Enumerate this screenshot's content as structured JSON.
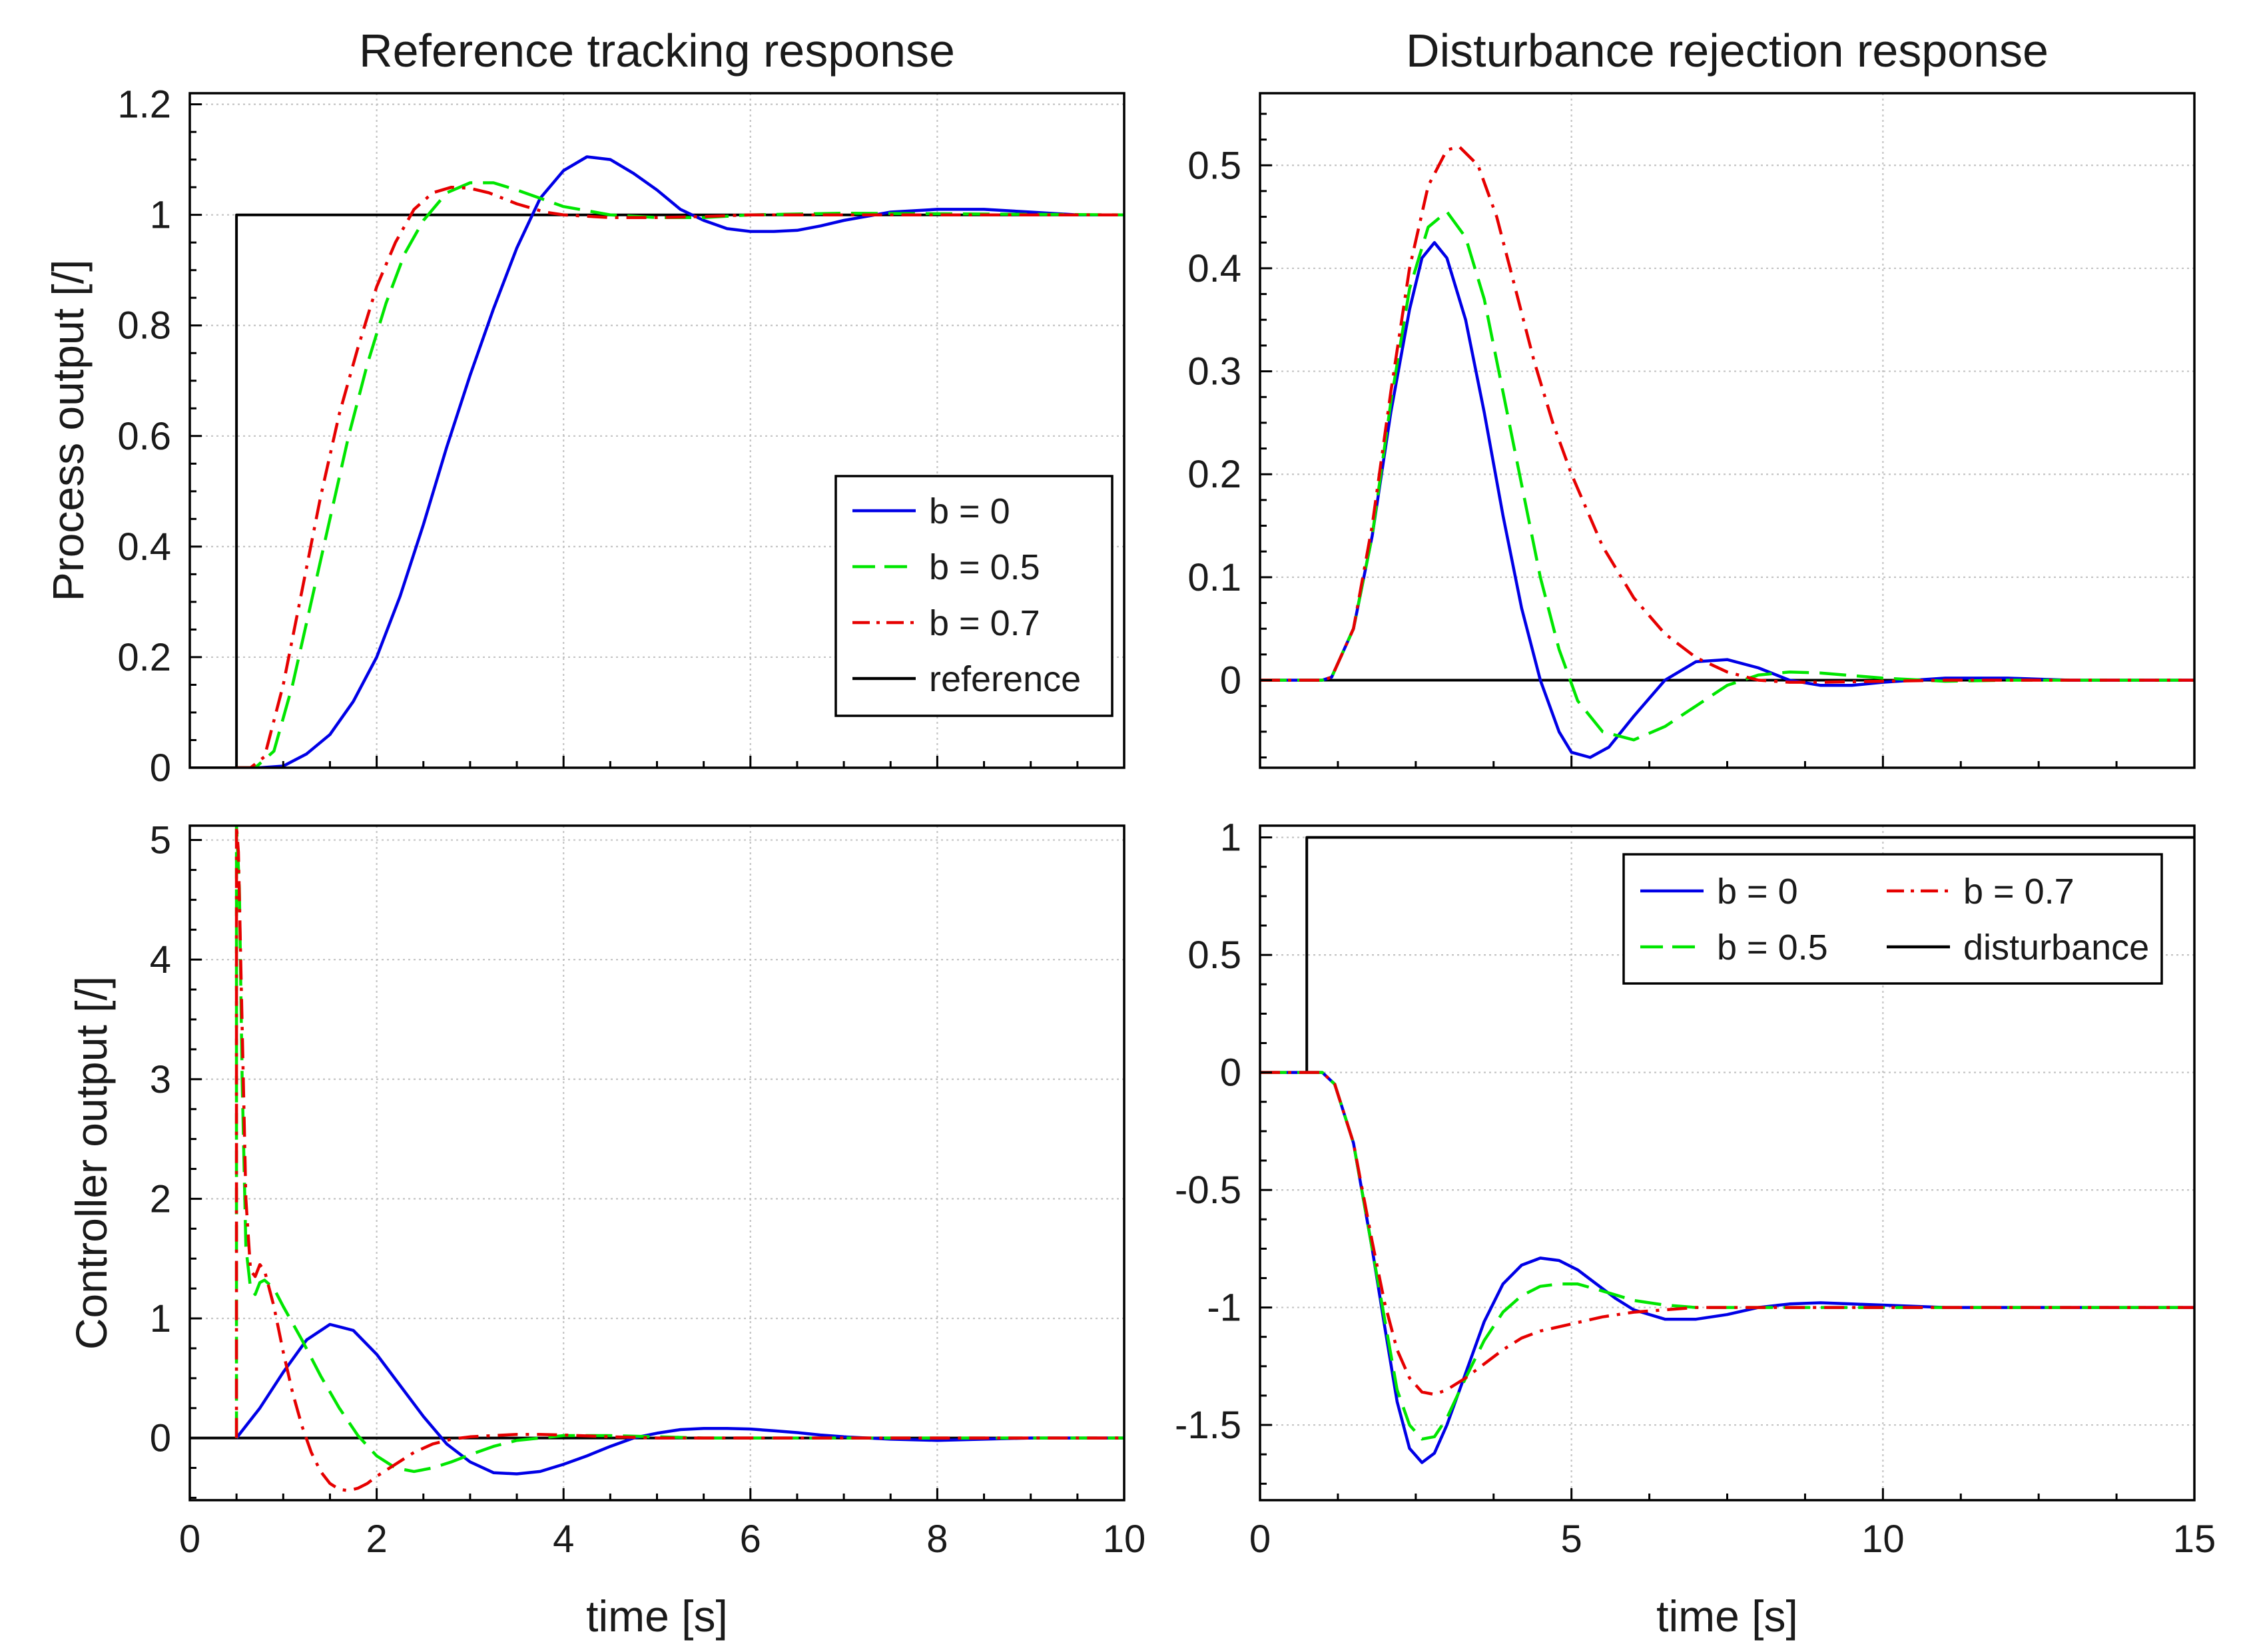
{
  "colors": {
    "b0": "#0000e6",
    "b05": "#00e600",
    "b07": "#e60000",
    "reference": "#000000"
  },
  "chart_data": [
    {
      "id": "tl",
      "type": "line",
      "title": "Reference tracking response",
      "xlabel": "",
      "ylabel": "Process output [/]",
      "xlim": [
        0,
        10
      ],
      "ylim": [
        0,
        1.22
      ],
      "xticks": [
        0,
        2,
        4,
        6,
        8,
        10
      ],
      "yticks": [
        0,
        0.2,
        0.4,
        0.6,
        0.8,
        1,
        1.2
      ],
      "yticklabels": [
        "0",
        "0.2",
        "0.4",
        "0.6",
        "0.8",
        "1",
        "1.2"
      ],
      "show_xticklabels": false,
      "grid": true,
      "legend": {
        "position": "right",
        "columns": 1
      },
      "series": [
        {
          "name": "b = 0",
          "style": "solid",
          "color": "#0000e6",
          "x": [
            0.5,
            0.75,
            1.0,
            1.25,
            1.5,
            1.75,
            2.0,
            2.25,
            2.5,
            2.75,
            3.0,
            3.25,
            3.5,
            3.75,
            4.0,
            4.25,
            4.5,
            4.75,
            5.0,
            5.25,
            5.5,
            5.75,
            6.0,
            6.25,
            6.5,
            6.75,
            7.0,
            7.5,
            8.0,
            8.5,
            9.0,
            9.5,
            10.0
          ],
          "y": [
            0,
            0,
            0.003,
            0.025,
            0.06,
            0.12,
            0.2,
            0.31,
            0.44,
            0.58,
            0.71,
            0.83,
            0.94,
            1.03,
            1.08,
            1.105,
            1.1,
            1.075,
            1.045,
            1.01,
            0.99,
            0.975,
            0.97,
            0.97,
            0.972,
            0.98,
            0.99,
            1.005,
            1.01,
            1.01,
            1.005,
            1.0,
            1.0
          ]
        },
        {
          "name": "b = 0.5",
          "style": "dashed",
          "color": "#00e600",
          "x": [
            0.5,
            0.7,
            0.9,
            1.1,
            1.3,
            1.5,
            1.7,
            1.9,
            2.1,
            2.3,
            2.5,
            2.75,
            3.0,
            3.25,
            3.5,
            3.75,
            4.0,
            4.5,
            5.0,
            5.5,
            6.0,
            7.0,
            8.0,
            10.0
          ],
          "y": [
            0,
            0,
            0.03,
            0.15,
            0.3,
            0.45,
            0.6,
            0.73,
            0.84,
            0.93,
            0.99,
            1.04,
            1.058,
            1.058,
            1.045,
            1.03,
            1.015,
            1.0,
            0.995,
            0.995,
            1.0,
            1.003,
            1.002,
            1.0
          ]
        },
        {
          "name": "b = 0.7",
          "style": "dashdot",
          "color": "#e60000",
          "x": [
            0.5,
            0.65,
            0.8,
            1.0,
            1.2,
            1.4,
            1.6,
            1.8,
            2.0,
            2.2,
            2.4,
            2.6,
            2.8,
            3.0,
            3.2,
            3.5,
            3.8,
            4.0,
            4.5,
            5.0,
            5.5,
            6.0,
            7.0,
            10.0
          ],
          "y": [
            0,
            0,
            0.02,
            0.15,
            0.32,
            0.49,
            0.64,
            0.76,
            0.87,
            0.95,
            1.01,
            1.04,
            1.05,
            1.048,
            1.04,
            1.02,
            1.005,
            1.0,
            0.995,
            0.995,
            0.997,
            1.0,
            1.0,
            1.0
          ]
        },
        {
          "name": "reference",
          "style": "solid",
          "color": "#000000",
          "x": [
            0,
            0.5,
            0.5,
            10
          ],
          "y": [
            0,
            0,
            1,
            1
          ]
        }
      ]
    },
    {
      "id": "tr",
      "type": "line",
      "title": "Disturbance rejection response",
      "xlabel": "",
      "ylabel": "",
      "xlim": [
        0,
        15
      ],
      "ylim": [
        -0.085,
        0.57
      ],
      "xticks": [
        0,
        5,
        10,
        15
      ],
      "yticks": [
        0,
        0.1,
        0.2,
        0.3,
        0.4,
        0.5
      ],
      "yticklabels": [
        "0",
        "0.1",
        "0.2",
        "0.3",
        "0.4",
        "0.5"
      ],
      "show_xticklabels": false,
      "grid": true,
      "series": [
        {
          "name": "b = 0",
          "style": "solid",
          "color": "#0000e6",
          "x": [
            0,
            1.0,
            1.15,
            1.5,
            1.8,
            2.1,
            2.4,
            2.6,
            2.8,
            3.0,
            3.3,
            3.6,
            3.9,
            4.2,
            4.5,
            4.8,
            5.0,
            5.3,
            5.6,
            6.0,
            6.5,
            7.0,
            7.5,
            8.0,
            8.5,
            9.0,
            9.5,
            10.0,
            11.0,
            12.0,
            13.0,
            14.0,
            15.0
          ],
          "y": [
            0,
            0,
            0.003,
            0.05,
            0.14,
            0.26,
            0.36,
            0.41,
            0.425,
            0.41,
            0.35,
            0.26,
            0.16,
            0.07,
            0.0,
            -0.05,
            -0.07,
            -0.075,
            -0.065,
            -0.035,
            0.0,
            0.018,
            0.02,
            0.012,
            0.0,
            -0.005,
            -0.005,
            -0.002,
            0.002,
            0.002,
            0.0,
            0.0,
            0.0
          ]
        },
        {
          "name": "b = 0.5",
          "style": "dashed",
          "color": "#00e600",
          "x": [
            0,
            1.0,
            1.15,
            1.5,
            1.8,
            2.1,
            2.4,
            2.7,
            3.0,
            3.3,
            3.6,
            3.9,
            4.2,
            4.5,
            4.8,
            5.1,
            5.5,
            6.0,
            6.5,
            7.0,
            7.5,
            8.0,
            8.5,
            9.0,
            10.0,
            11.0,
            12.0,
            15.0
          ],
          "y": [
            0,
            0,
            0.003,
            0.05,
            0.14,
            0.27,
            0.38,
            0.44,
            0.455,
            0.43,
            0.37,
            0.28,
            0.19,
            0.1,
            0.03,
            -0.02,
            -0.05,
            -0.058,
            -0.045,
            -0.025,
            -0.005,
            0.005,
            0.008,
            0.007,
            0.002,
            -0.001,
            0.0,
            0.0
          ]
        },
        {
          "name": "b = 0.7",
          "style": "dashdot",
          "color": "#e60000",
          "x": [
            0,
            1.0,
            1.15,
            1.5,
            1.8,
            2.1,
            2.4,
            2.7,
            3.0,
            3.2,
            3.5,
            3.8,
            4.1,
            4.4,
            4.7,
            5.0,
            5.5,
            6.0,
            6.5,
            7.0,
            7.5,
            8.0,
            8.5,
            9.0,
            10.0,
            11.0,
            12.0,
            15.0
          ],
          "y": [
            0,
            0,
            0.003,
            0.05,
            0.15,
            0.28,
            0.4,
            0.48,
            0.515,
            0.518,
            0.5,
            0.45,
            0.38,
            0.31,
            0.25,
            0.2,
            0.13,
            0.08,
            0.045,
            0.022,
            0.008,
            0.0,
            -0.002,
            -0.002,
            -0.001,
            0.0,
            0.0,
            0.0
          ]
        },
        {
          "name": "zero",
          "style": "solid",
          "color": "#000000",
          "x": [
            0,
            15
          ],
          "y": [
            0,
            0
          ]
        }
      ]
    },
    {
      "id": "bl",
      "type": "line",
      "title": "",
      "xlabel": "time [s]",
      "ylabel": "Controller output [/]",
      "xlim": [
        0,
        10
      ],
      "ylim": [
        -0.52,
        5.12
      ],
      "xticks": [
        0,
        2,
        4,
        6,
        8,
        10
      ],
      "xticklabels": [
        "0",
        "2",
        "4",
        "6",
        "8",
        "10"
      ],
      "yticks": [
        0,
        1,
        2,
        3,
        4,
        5
      ],
      "yticklabels": [
        "0",
        "1",
        "2",
        "3",
        "4",
        "5"
      ],
      "show_xticklabels": true,
      "grid": true,
      "series": [
        {
          "name": "b = 0",
          "style": "solid",
          "color": "#0000e6",
          "x": [
            0.5,
            0.75,
            1.0,
            1.25,
            1.5,
            1.75,
            2.0,
            2.25,
            2.5,
            2.75,
            3.0,
            3.25,
            3.5,
            3.75,
            4.0,
            4.25,
            4.5,
            4.75,
            5.0,
            5.25,
            5.5,
            5.75,
            6.0,
            6.25,
            6.5,
            6.75,
            7.0,
            7.5,
            8.0,
            8.5,
            9.0,
            10.0
          ],
          "y": [
            0,
            0.25,
            0.55,
            0.82,
            0.95,
            0.9,
            0.7,
            0.44,
            0.18,
            -0.05,
            -0.2,
            -0.29,
            -0.3,
            -0.28,
            -0.22,
            -0.15,
            -0.07,
            0.0,
            0.04,
            0.07,
            0.08,
            0.08,
            0.075,
            0.06,
            0.045,
            0.025,
            0.01,
            -0.01,
            -0.02,
            -0.01,
            0.0,
            0.0
          ]
        },
        {
          "name": "b = 0.5",
          "style": "dashed",
          "color": "#00e600",
          "x": [
            0.5,
            0.5,
            0.53,
            0.56,
            0.6,
            0.65,
            0.7,
            0.75,
            0.8,
            0.9,
            1.0,
            1.2,
            1.4,
            1.6,
            1.8,
            2.0,
            2.2,
            2.4,
            2.6,
            2.8,
            3.0,
            3.25,
            3.5,
            3.75,
            4.0,
            4.5,
            5.0,
            5.5,
            6.0,
            7.0,
            8.0,
            10.0
          ],
          "y": [
            0,
            5.12,
            4.6,
            3.0,
            1.6,
            1.25,
            1.2,
            1.3,
            1.32,
            1.25,
            1.1,
            0.82,
            0.52,
            0.25,
            0.02,
            -0.15,
            -0.25,
            -0.28,
            -0.25,
            -0.2,
            -0.14,
            -0.07,
            -0.02,
            0.0,
            0.02,
            0.02,
            0.01,
            0.0,
            0.0,
            0.0,
            0.0,
            0.0
          ]
        },
        {
          "name": "b = 0.7",
          "style": "dashdot",
          "color": "#e60000",
          "x": [
            0.5,
            0.5,
            0.52,
            0.55,
            0.6,
            0.65,
            0.7,
            0.75,
            0.8,
            0.9,
            1.0,
            1.1,
            1.2,
            1.3,
            1.4,
            1.5,
            1.6,
            1.7,
            1.8,
            1.9,
            2.0,
            2.2,
            2.4,
            2.6,
            2.8,
            3.0,
            3.25,
            3.5,
            3.75,
            4.0,
            4.5,
            5.0,
            5.5,
            6.0,
            7.0,
            10.0
          ],
          "y": [
            0,
            5.12,
            4.9,
            3.8,
            2.0,
            1.4,
            1.35,
            1.45,
            1.4,
            1.1,
            0.72,
            0.38,
            0.1,
            -0.12,
            -0.28,
            -0.38,
            -0.43,
            -0.44,
            -0.42,
            -0.38,
            -0.32,
            -0.22,
            -0.12,
            -0.05,
            -0.01,
            0.01,
            0.02,
            0.03,
            0.03,
            0.025,
            0.01,
            0.0,
            0.0,
            0.0,
            0.0,
            0.0
          ]
        },
        {
          "name": "zero",
          "style": "solid",
          "color": "#000000",
          "x": [
            0,
            10
          ],
          "y": [
            0,
            0
          ]
        }
      ]
    },
    {
      "id": "br",
      "type": "line",
      "title": "",
      "xlabel": "time [s]",
      "ylabel": "",
      "xlim": [
        0,
        15
      ],
      "ylim": [
        -1.82,
        1.05
      ],
      "xticks": [
        0,
        5,
        10,
        15
      ],
      "xticklabels": [
        "0",
        "5",
        "10",
        "15"
      ],
      "yticks": [
        -1.5,
        -1,
        -0.5,
        0,
        0.5,
        1
      ],
      "yticklabels": [
        "-1.5",
        "-1",
        "-0.5",
        "0",
        "0.5",
        "1"
      ],
      "show_xticklabels": true,
      "grid": true,
      "legend": {
        "position": "top-right",
        "columns": 2
      },
      "series": [
        {
          "name": "b = 0",
          "style": "solid",
          "color": "#0000e6",
          "x": [
            0,
            1.0,
            1.2,
            1.5,
            1.8,
            2.0,
            2.2,
            2.4,
            2.6,
            2.8,
            3.0,
            3.3,
            3.6,
            3.9,
            4.2,
            4.5,
            4.8,
            5.1,
            5.4,
            5.7,
            6.0,
            6.5,
            7.0,
            7.5,
            8.0,
            8.5,
            9.0,
            9.5,
            10.0,
            11.0,
            12.0,
            13.0,
            15.0
          ],
          "y": [
            0,
            0,
            -0.05,
            -0.3,
            -0.75,
            -1.08,
            -1.4,
            -1.6,
            -1.66,
            -1.62,
            -1.5,
            -1.28,
            -1.06,
            -0.9,
            -0.82,
            -0.79,
            -0.8,
            -0.84,
            -0.9,
            -0.96,
            -1.01,
            -1.05,
            -1.05,
            -1.03,
            -1.0,
            -0.985,
            -0.98,
            -0.985,
            -0.99,
            -1.0,
            -1.0,
            -1.0,
            -1.0
          ]
        },
        {
          "name": "b = 0.5",
          "style": "dashed",
          "color": "#00e600",
          "x": [
            0,
            1.0,
            1.2,
            1.5,
            1.8,
            2.0,
            2.2,
            2.4,
            2.6,
            2.8,
            3.0,
            3.3,
            3.6,
            3.9,
            4.2,
            4.5,
            4.8,
            5.1,
            5.5,
            6.0,
            6.5,
            7.0,
            7.5,
            8.0,
            9.0,
            10.0,
            11.0,
            15.0
          ],
          "y": [
            0,
            0,
            -0.05,
            -0.3,
            -0.75,
            -1.05,
            -1.35,
            -1.5,
            -1.56,
            -1.55,
            -1.47,
            -1.3,
            -1.14,
            -1.02,
            -0.95,
            -0.91,
            -0.9,
            -0.9,
            -0.93,
            -0.97,
            -0.99,
            -1.0,
            -1.0,
            -1.0,
            -1.0,
            -1.0,
            -1.0,
            -1.0
          ]
        },
        {
          "name": "b = 0.7",
          "style": "dashdot",
          "color": "#e60000",
          "x": [
            0,
            1.0,
            1.2,
            1.5,
            1.8,
            2.0,
            2.2,
            2.4,
            2.6,
            2.8,
            3.0,
            3.3,
            3.6,
            3.9,
            4.2,
            4.5,
            5.0,
            5.5,
            6.0,
            6.5,
            7.0,
            8.0,
            9.0,
            10.0,
            15.0
          ],
          "y": [
            0,
            0,
            -0.05,
            -0.3,
            -0.72,
            -0.98,
            -1.18,
            -1.3,
            -1.36,
            -1.37,
            -1.35,
            -1.3,
            -1.24,
            -1.18,
            -1.13,
            -1.1,
            -1.07,
            -1.04,
            -1.02,
            -1.01,
            -1.0,
            -1.0,
            -1.0,
            -1.0,
            -1.0
          ]
        },
        {
          "name": "disturbance",
          "style": "solid",
          "color": "#000000",
          "x": [
            0,
            0.75,
            0.75,
            15
          ],
          "y": [
            0,
            0,
            1,
            1
          ]
        }
      ]
    }
  ]
}
